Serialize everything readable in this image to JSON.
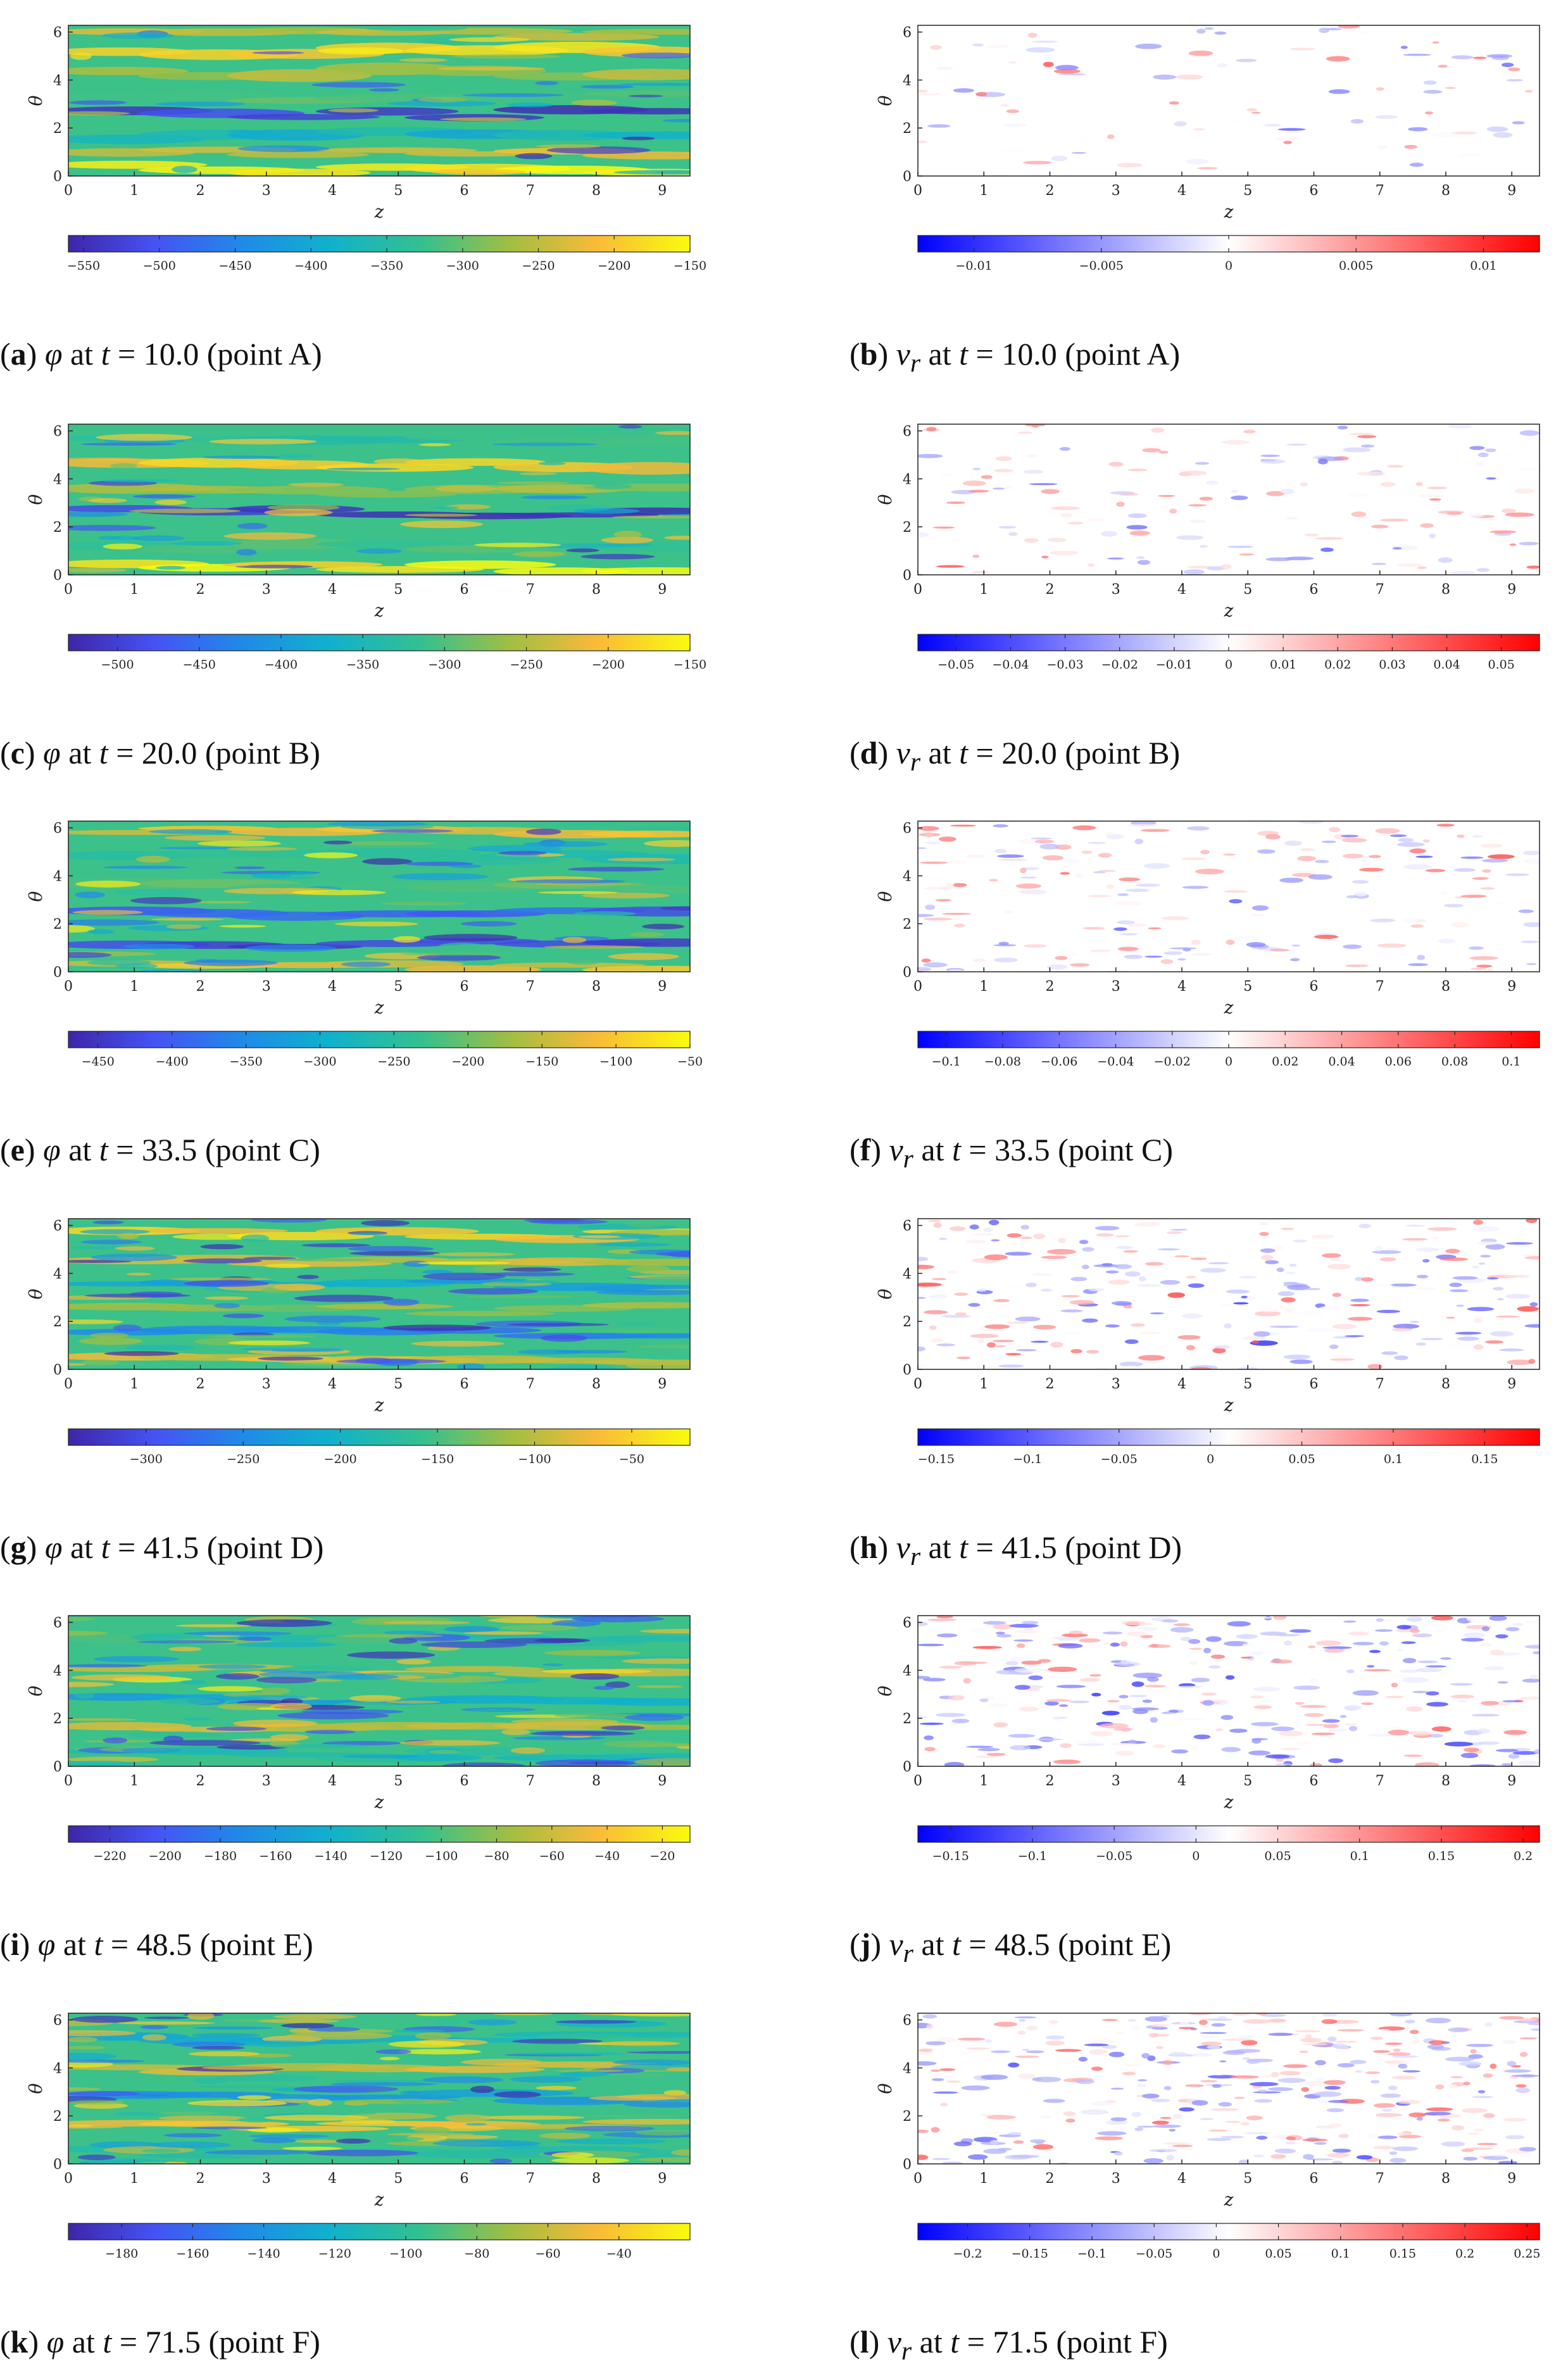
{
  "figure": {
    "panels": [
      {
        "id": "a",
        "caption": {
          "label": "a",
          "var": "φ",
          "sub": "",
          "time": "10.0",
          "point": "point A"
        },
        "chart_data": {
          "type": "heatmap",
          "field": "phi",
          "xlabel": "z",
          "ylabel": "θ",
          "xlim": [
            0,
            9.42
          ],
          "ylim": [
            0,
            6.28
          ],
          "xticks": [
            0,
            1,
            2,
            3,
            4,
            5,
            6,
            7,
            8,
            9
          ],
          "yticks": [
            0,
            2,
            4,
            6
          ],
          "colormap": "parula",
          "clim": [
            -560,
            -150
          ],
          "colorbar_ticks": [
            -550,
            -500,
            -450,
            -400,
            -350,
            -300,
            -250,
            -200,
            -150
          ],
          "bands": [
            {
              "theta": 0.3,
              "value": -170,
              "width": 0.35
            },
            {
              "theta": 1.0,
              "value": -230,
              "width": 0.3
            },
            {
              "theta": 1.7,
              "value": -380,
              "width": 0.4
            },
            {
              "theta": 2.6,
              "value": -530,
              "width": 0.35
            },
            {
              "theta": 3.3,
              "value": -300,
              "width": 0.35
            },
            {
              "theta": 4.3,
              "value": -260,
              "width": 0.45
            },
            {
              "theta": 5.2,
              "value": -190,
              "width": 0.4
            },
            {
              "theta": 5.9,
              "value": -250,
              "width": 0.3
            }
          ]
        }
      },
      {
        "id": "b",
        "caption": {
          "label": "b",
          "var": "v",
          "sub": "r",
          "time": "10.0",
          "point": "point A"
        },
        "chart_data": {
          "type": "heatmap",
          "field": "v_r",
          "xlabel": "z",
          "ylabel": "θ",
          "xlim": [
            0,
            9.42
          ],
          "ylim": [
            0,
            6.28
          ],
          "xticks": [
            0,
            1,
            2,
            3,
            4,
            5,
            6,
            7,
            8,
            9
          ],
          "yticks": [
            0,
            2,
            4,
            6
          ],
          "colormap": "bwr",
          "clim": [
            -0.0122,
            0.0122
          ],
          "colorbar_ticks": [
            -0.01,
            -0.005,
            0,
            0.005,
            0.01
          ],
          "colorbar_tick_labels": [
            "−0.01",
            "−0.005",
            "0",
            "0.005",
            "0.01"
          ]
        }
      },
      {
        "id": "c",
        "caption": {
          "label": "c",
          "var": "φ",
          "sub": "",
          "time": "20.0",
          "point": "point B"
        },
        "chart_data": {
          "type": "heatmap",
          "field": "phi",
          "xlabel": "z",
          "ylabel": "θ",
          "xlim": [
            0,
            9.42
          ],
          "ylim": [
            0,
            6.28
          ],
          "xticks": [
            0,
            1,
            2,
            3,
            4,
            5,
            6,
            7,
            8,
            9
          ],
          "yticks": [
            0,
            2,
            4,
            6
          ],
          "colormap": "parula",
          "clim": [
            -530,
            -150
          ],
          "colorbar_ticks": [
            -500,
            -450,
            -400,
            -350,
            -300,
            -250,
            -200,
            -150
          ],
          "bands": [
            {
              "theta": 0.3,
              "value": -165,
              "width": 0.3
            },
            {
              "theta": 1.2,
              "value": -300,
              "width": 0.4
            },
            {
              "theta": 2.6,
              "value": -510,
              "width": 0.3
            },
            {
              "theta": 3.5,
              "value": -260,
              "width": 0.4
            },
            {
              "theta": 4.6,
              "value": -200,
              "width": 0.45
            },
            {
              "theta": 5.7,
              "value": -320,
              "width": 0.35
            }
          ]
        }
      },
      {
        "id": "d",
        "caption": {
          "label": "d",
          "var": "v",
          "sub": "r",
          "time": "20.0",
          "point": "point B"
        },
        "chart_data": {
          "type": "heatmap",
          "field": "v_r",
          "xlabel": "z",
          "ylabel": "θ",
          "xlim": [
            0,
            9.42
          ],
          "ylim": [
            0,
            6.28
          ],
          "xticks": [
            0,
            1,
            2,
            3,
            4,
            5,
            6,
            7,
            8,
            9
          ],
          "yticks": [
            0,
            2,
            4,
            6
          ],
          "colormap": "bwr",
          "clim": [
            -0.057,
            0.057
          ],
          "colorbar_ticks": [
            -0.05,
            -0.04,
            -0.03,
            -0.02,
            -0.01,
            0,
            0.01,
            0.02,
            0.03,
            0.04,
            0.05
          ],
          "colorbar_tick_labels": [
            "−0.05",
            "−0.04",
            "−0.03",
            "−0.02",
            "−0.01",
            "0",
            "0.01",
            "0.02",
            "0.03",
            "0.04",
            "0.05"
          ]
        }
      },
      {
        "id": "e",
        "caption": {
          "label": "e",
          "var": "φ",
          "sub": "",
          "time": "33.5",
          "point": "point C"
        },
        "chart_data": {
          "type": "heatmap",
          "field": "phi",
          "xlabel": "z",
          "ylabel": "θ",
          "xlim": [
            0,
            9.42
          ],
          "ylim": [
            0,
            6.28
          ],
          "xticks": [
            0,
            1,
            2,
            3,
            4,
            5,
            6,
            7,
            8,
            9
          ],
          "yticks": [
            0,
            2,
            4,
            6
          ],
          "colormap": "parula",
          "clim": [
            -470,
            -50
          ],
          "colorbar_ticks": [
            -450,
            -400,
            -350,
            -300,
            -250,
            -200,
            -150,
            -100,
            -50
          ],
          "bands": [
            {
              "theta": 0.2,
              "value": -120,
              "width": 0.3
            },
            {
              "theta": 1.1,
              "value": -440,
              "width": 0.3
            },
            {
              "theta": 2.4,
              "value": -400,
              "width": 0.35
            },
            {
              "theta": 3.6,
              "value": -200,
              "width": 0.4
            },
            {
              "theta": 4.8,
              "value": -250,
              "width": 0.4
            },
            {
              "theta": 5.9,
              "value": -120,
              "width": 0.3
            }
          ]
        }
      },
      {
        "id": "f",
        "caption": {
          "label": "f",
          "var": "v",
          "sub": "r",
          "time": "33.5",
          "point": "point C"
        },
        "chart_data": {
          "type": "heatmap",
          "field": "v_r",
          "xlabel": "z",
          "ylabel": "θ",
          "xlim": [
            0,
            9.42
          ],
          "ylim": [
            0,
            6.28
          ],
          "xticks": [
            0,
            1,
            2,
            3,
            4,
            5,
            6,
            7,
            8,
            9
          ],
          "yticks": [
            0,
            2,
            4,
            6
          ],
          "colormap": "bwr",
          "clim": [
            -0.11,
            0.11
          ],
          "colorbar_ticks": [
            -0.1,
            -0.08,
            -0.06,
            -0.04,
            -0.02,
            0,
            0.02,
            0.04,
            0.06,
            0.08,
            0.1
          ],
          "colorbar_tick_labels": [
            "−0.1",
            "−0.08",
            "−0.06",
            "−0.04",
            "−0.02",
            "0",
            "0.02",
            "0.04",
            "0.06",
            "0.08",
            "0.1"
          ]
        }
      },
      {
        "id": "g",
        "caption": {
          "label": "g",
          "var": "φ",
          "sub": "",
          "time": "41.5",
          "point": "point D"
        },
        "chart_data": {
          "type": "heatmap",
          "field": "phi",
          "xlabel": "z",
          "ylabel": "θ",
          "xlim": [
            0,
            9.42
          ],
          "ylim": [
            0,
            6.28
          ],
          "xticks": [
            0,
            1,
            2,
            3,
            4,
            5,
            6,
            7,
            8,
            9
          ],
          "yticks": [
            0,
            2,
            4,
            6
          ],
          "colormap": "parula",
          "clim": [
            -340,
            -20
          ],
          "colorbar_ticks": [
            -300,
            -250,
            -200,
            -150,
            -100,
            -50
          ],
          "bands": [
            {
              "theta": 0.4,
              "value": -80,
              "width": 0.3
            },
            {
              "theta": 1.5,
              "value": -260,
              "width": 0.3
            },
            {
              "theta": 2.5,
              "value": -120,
              "width": 0.3
            },
            {
              "theta": 3.5,
              "value": -220,
              "width": 0.3
            },
            {
              "theta": 4.5,
              "value": -90,
              "width": 0.3
            },
            {
              "theta": 5.6,
              "value": -60,
              "width": 0.3
            }
          ]
        }
      },
      {
        "id": "h",
        "caption": {
          "label": "h",
          "var": "v",
          "sub": "r",
          "time": "41.5",
          "point": "point D"
        },
        "chart_data": {
          "type": "heatmap",
          "field": "v_r",
          "xlabel": "z",
          "ylabel": "θ",
          "xlim": [
            0,
            9.42
          ],
          "ylim": [
            0,
            6.28
          ],
          "xticks": [
            0,
            1,
            2,
            3,
            4,
            5,
            6,
            7,
            8,
            9
          ],
          "yticks": [
            0,
            2,
            4,
            6
          ],
          "colormap": "bwr",
          "clim": [
            -0.16,
            0.18
          ],
          "colorbar_ticks": [
            -0.15,
            -0.1,
            -0.05,
            0,
            0.05,
            0.1,
            0.15
          ],
          "colorbar_tick_labels": [
            "−0.15",
            "−0.1",
            "−0.05",
            "0",
            "0.05",
            "0.1",
            "0.15"
          ]
        }
      },
      {
        "id": "i",
        "caption": {
          "label": "i",
          "var": "φ",
          "sub": "",
          "time": "48.5",
          "point": "point E"
        },
        "chart_data": {
          "type": "heatmap",
          "field": "phi",
          "xlabel": "z",
          "ylabel": "θ",
          "xlim": [
            0,
            9.42
          ],
          "ylim": [
            0,
            6.28
          ],
          "xticks": [
            0,
            1,
            2,
            3,
            4,
            5,
            6,
            7,
            8,
            9
          ],
          "yticks": [
            0,
            2,
            4,
            6
          ],
          "colormap": "parula",
          "clim": [
            -235,
            -10
          ],
          "colorbar_ticks": [
            -220,
            -200,
            -180,
            -160,
            -140,
            -120,
            -100,
            -80,
            -60,
            -40,
            -20
          ],
          "bands": [
            {
              "theta": 0.5,
              "value": -120,
              "width": 0.3
            },
            {
              "theta": 1.6,
              "value": -60,
              "width": 0.3
            },
            {
              "theta": 2.8,
              "value": -150,
              "width": 0.3
            },
            {
              "theta": 4.0,
              "value": -50,
              "width": 0.3
            },
            {
              "theta": 5.3,
              "value": -110,
              "width": 0.3
            }
          ]
        }
      },
      {
        "id": "j",
        "caption": {
          "label": "j",
          "var": "v",
          "sub": "r",
          "time": "48.5",
          "point": "point E"
        },
        "chart_data": {
          "type": "heatmap",
          "field": "v_r",
          "xlabel": "z",
          "ylabel": "θ",
          "xlim": [
            0,
            9.42
          ],
          "ylim": [
            0,
            6.28
          ],
          "xticks": [
            0,
            1,
            2,
            3,
            4,
            5,
            6,
            7,
            8,
            9
          ],
          "yticks": [
            0,
            2,
            4,
            6
          ],
          "colormap": "bwr",
          "clim": [
            -0.17,
            0.21
          ],
          "colorbar_ticks": [
            -0.15,
            -0.1,
            -0.05,
            0,
            0.05,
            0.1,
            0.15,
            0.2
          ],
          "colorbar_tick_labels": [
            "−0.15",
            "−0.1",
            "−0.05",
            "0",
            "0.05",
            "0.1",
            "0.15",
            "0.2"
          ]
        }
      },
      {
        "id": "k",
        "caption": {
          "label": "k",
          "var": "φ",
          "sub": "",
          "time": "71.5",
          "point": "point F"
        },
        "chart_data": {
          "type": "heatmap",
          "field": "phi",
          "xlabel": "z",
          "ylabel": "θ",
          "xlim": [
            0,
            9.42
          ],
          "ylim": [
            0,
            6.28
          ],
          "xticks": [
            0,
            1,
            2,
            3,
            4,
            5,
            6,
            7,
            8,
            9
          ],
          "yticks": [
            0,
            2,
            4,
            6
          ],
          "colormap": "parula",
          "clim": [
            -195,
            -20
          ],
          "colorbar_ticks": [
            -180,
            -160,
            -140,
            -120,
            -100,
            -80,
            -60,
            -40
          ],
          "bands": [
            {
              "theta": 0.5,
              "value": -100,
              "width": 0.3
            },
            {
              "theta": 1.6,
              "value": -50,
              "width": 0.3
            },
            {
              "theta": 2.8,
              "value": -140,
              "width": 0.3
            },
            {
              "theta": 4.0,
              "value": -60,
              "width": 0.3
            },
            {
              "theta": 5.3,
              "value": -120,
              "width": 0.3
            }
          ]
        }
      },
      {
        "id": "l",
        "caption": {
          "label": "l",
          "var": "v",
          "sub": "r",
          "time": "71.5",
          "point": "point F"
        },
        "chart_data": {
          "type": "heatmap",
          "field": "v_r",
          "xlabel": "z",
          "ylabel": "θ",
          "xlim": [
            0,
            9.42
          ],
          "ylim": [
            0,
            6.28
          ],
          "xticks": [
            0,
            1,
            2,
            3,
            4,
            5,
            6,
            7,
            8,
            9
          ],
          "yticks": [
            0,
            2,
            4,
            6
          ],
          "colormap": "bwr",
          "clim": [
            -0.24,
            0.26
          ],
          "colorbar_ticks": [
            -0.2,
            -0.15,
            -0.1,
            -0.05,
            0,
            0.05,
            0.1,
            0.15,
            0.2,
            0.25
          ],
          "colorbar_tick_labels": [
            "−0.2",
            "−0.15",
            "−0.1",
            "−0.05",
            "0",
            "0.05",
            "0.1",
            "0.15",
            "0.2",
            "0.25"
          ]
        }
      }
    ]
  }
}
